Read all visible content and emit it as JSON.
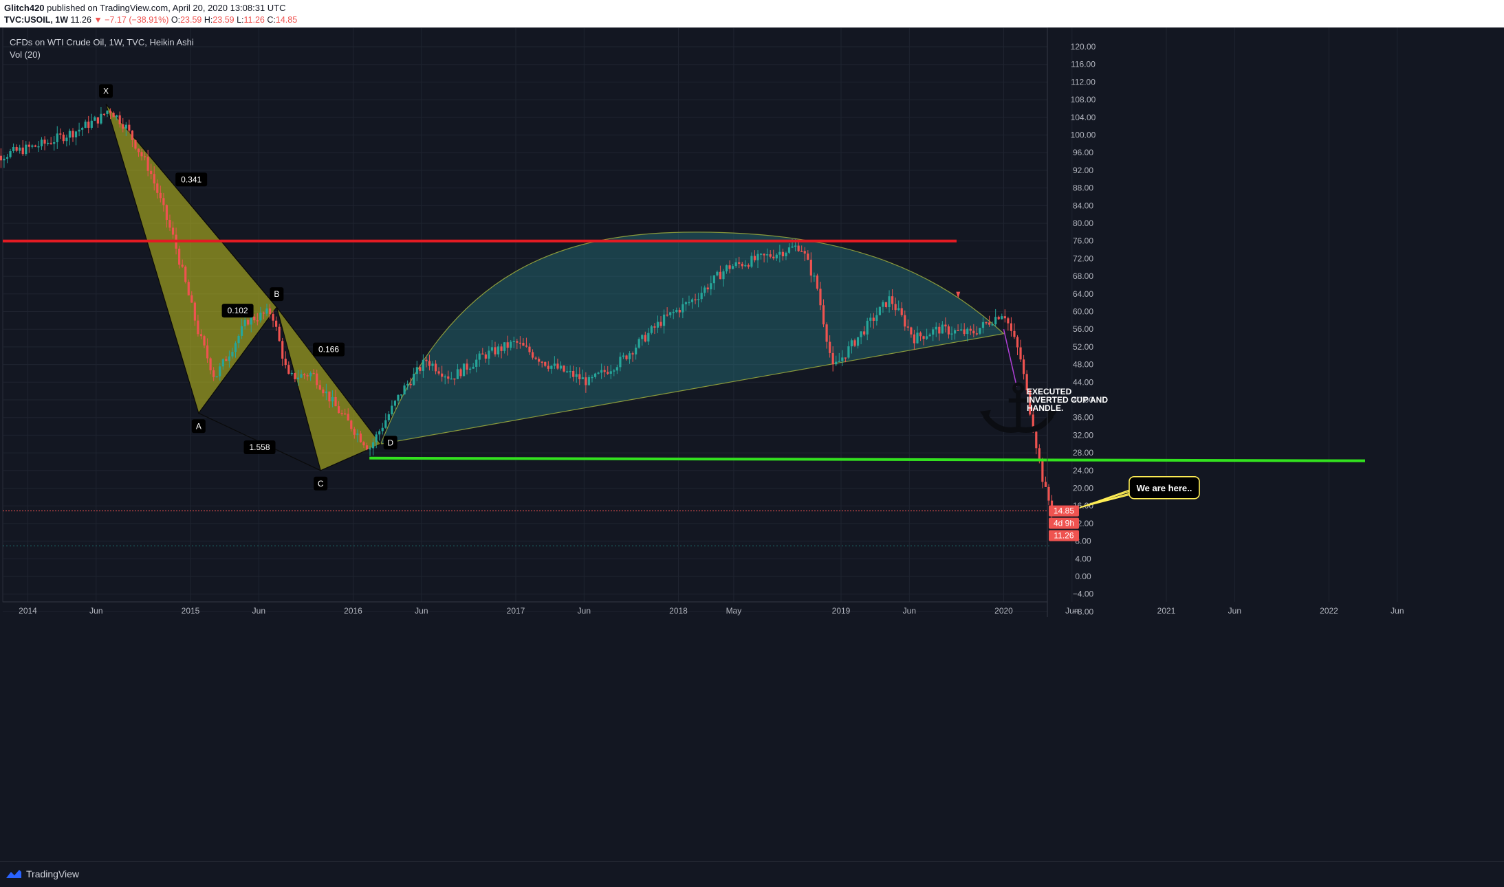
{
  "header": {
    "author": "Glitch420",
    "published": "published on TradingView.com, April 20, 2020 13:08:31 UTC",
    "symbol": "TVC:USOIL, 1W",
    "last": "11.26",
    "change": "−7.17 (−38.91%)",
    "ohlc": [
      {
        "label": "O:",
        "value": "23.59"
      },
      {
        "label": "H:",
        "value": "23.59"
      },
      {
        "label": "L:",
        "value": "11.26"
      },
      {
        "label": "C:",
        "value": "14.85"
      }
    ]
  },
  "legend": {
    "title": "CFDs on WTI Crude Oil, 1W, TVC, Heikin Ashi",
    "indicator": "Vol (20)"
  },
  "footer": {
    "brand": "TradingView"
  },
  "colors": {
    "up": "#26a69a",
    "down": "#ef5350",
    "resistance": "#e31b23",
    "support": "#33e21f",
    "harmonic": "#c8c81f",
    "cup": "#2a8d95"
  },
  "chart_data": {
    "type": "candlestick",
    "chart_type_label": "Heikin Ashi",
    "timeframe": "1W",
    "y_axis_ticks": [
      "120.00",
      "116.00",
      "112.00",
      "108.00",
      "104.00",
      "100.00",
      "96.00",
      "92.00",
      "88.00",
      "84.00",
      "80.00",
      "76.00",
      "72.00",
      "68.00",
      "64.00",
      "60.00",
      "56.00",
      "52.00",
      "48.00",
      "44.00",
      "40.00",
      "36.00",
      "32.00",
      "28.00",
      "24.00",
      "20.00",
      "16.00",
      "12.00",
      "8.00",
      "4.00",
      "0.00",
      "−4.00",
      "−8.00"
    ],
    "ylim": [
      -10,
      122
    ],
    "x_axis_labels": [
      "2014",
      "Jun",
      "2015",
      "Jun",
      "2016",
      "Jun",
      "2017",
      "Jun",
      "2018",
      "May",
      "2019",
      "Jun",
      "2020",
      "Jun",
      "2021",
      "Jun",
      "2022",
      "Jun"
    ],
    "price_path": [
      [
        2013.7,
        94
      ],
      [
        2013.9,
        96
      ],
      [
        2014.1,
        98
      ],
      [
        2014.3,
        101
      ],
      [
        2014.45,
        104
      ],
      [
        2014.5,
        106
      ],
      [
        2014.6,
        102
      ],
      [
        2014.75,
        92
      ],
      [
        2014.9,
        76
      ],
      [
        2015.05,
        55
      ],
      [
        2015.15,
        45
      ],
      [
        2015.35,
        58
      ],
      [
        2015.5,
        60
      ],
      [
        2015.6,
        45
      ],
      [
        2015.75,
        46
      ],
      [
        2015.9,
        38
      ],
      [
        2016.1,
        29
      ],
      [
        2016.3,
        42
      ],
      [
        2016.45,
        49
      ],
      [
        2016.6,
        45
      ],
      [
        2016.8,
        50
      ],
      [
        2017.0,
        53
      ],
      [
        2017.2,
        48
      ],
      [
        2017.45,
        44
      ],
      [
        2017.65,
        49
      ],
      [
        2017.9,
        58
      ],
      [
        2018.1,
        63
      ],
      [
        2018.3,
        70
      ],
      [
        2018.5,
        72
      ],
      [
        2018.75,
        75
      ],
      [
        2018.85,
        66
      ],
      [
        2018.95,
        47
      ],
      [
        2019.1,
        54
      ],
      [
        2019.3,
        63
      ],
      [
        2019.45,
        54
      ],
      [
        2019.6,
        56
      ],
      [
        2019.8,
        55
      ],
      [
        2020.0,
        60
      ],
      [
        2020.1,
        50
      ],
      [
        2020.2,
        30
      ],
      [
        2020.25,
        20
      ],
      [
        2020.3,
        14.85
      ]
    ],
    "current_price_label": "14.85",
    "countdown_label": "4d 9h",
    "low_label": "11.26",
    "harmonic_pattern": {
      "points": [
        {
          "label": "X",
          "date": 2014.48,
          "price": 107
        },
        {
          "label": "A",
          "date": 2015.05,
          "price": 37
        },
        {
          "label": "B",
          "date": 2015.53,
          "price": 61
        },
        {
          "label": "C",
          "date": 2015.8,
          "price": 24
        },
        {
          "label": "D",
          "date": 2016.17,
          "price": 30
        }
      ],
      "ratios": [
        "0.341",
        "0.102",
        "0.166",
        "1.558"
      ]
    },
    "resistance_level": 76.0,
    "support_level": 26.5,
    "annotations": [
      "EXECUTED INVERTED CUP AND HANDLE.",
      "We are here.."
    ]
  }
}
